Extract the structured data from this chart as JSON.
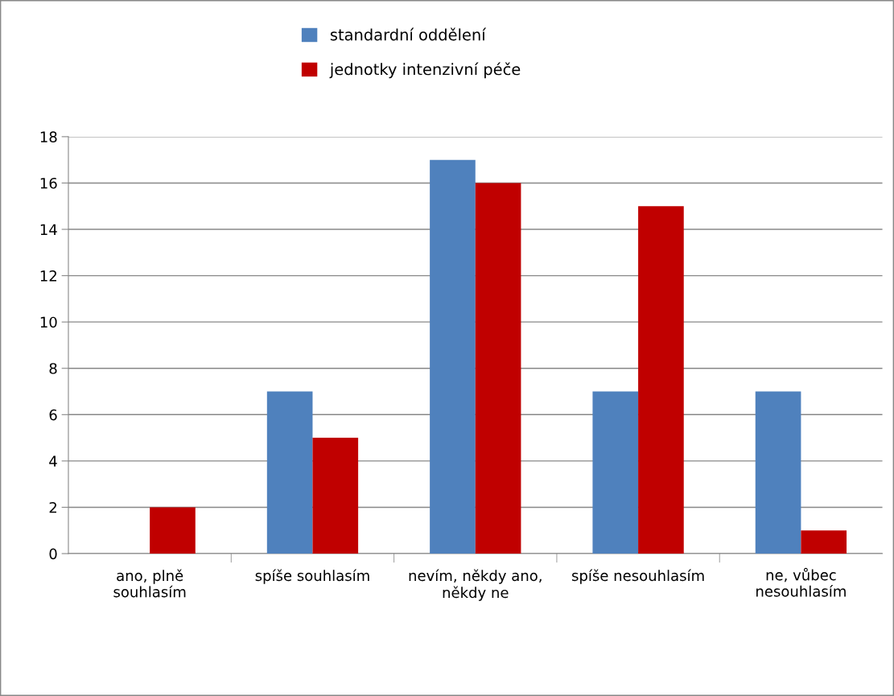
{
  "chart_data": {
    "type": "bar",
    "categories": [
      "ano, plně\nsouhlasím",
      "spíše souhlasím",
      "nevím, někdy ano,\nněkdy ne",
      "spíše nesouhlasím",
      "ne, vůbec\nnesouhlasím"
    ],
    "series": [
      {
        "name": "standardní oddělení",
        "color": "#4f81bd",
        "values": [
          0,
          7,
          17,
          7,
          7
        ]
      },
      {
        "name": "jednotky intenzivní péče",
        "color": "#c00000",
        "values": [
          2,
          5,
          16,
          15,
          1
        ]
      }
    ],
    "ylim": [
      0,
      18
    ],
    "yticks": [
      0,
      2,
      4,
      6,
      8,
      10,
      12,
      14,
      16,
      18
    ],
    "grid": "y",
    "legend": "top"
  }
}
